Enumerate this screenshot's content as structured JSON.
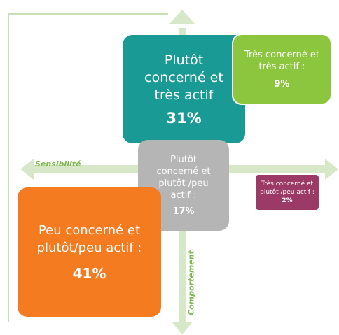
{
  "axes": {
    "horizontal": "Sensibilité",
    "vertical": "Comportement"
  },
  "boxes": [
    {
      "label": "Plutôt concerné et très actif",
      "percent": "31%"
    },
    {
      "label": "Très concerné et très actif :",
      "percent": "9%"
    },
    {
      "label": "Plutôt concerné et plutôt /peu actif :",
      "percent": "17%"
    },
    {
      "label": "Très concerné et plutôt /peu actif :",
      "percent": "2%"
    },
    {
      "label": "Peu concerné et plutôt/peu actif :",
      "percent": "41%"
    }
  ]
}
